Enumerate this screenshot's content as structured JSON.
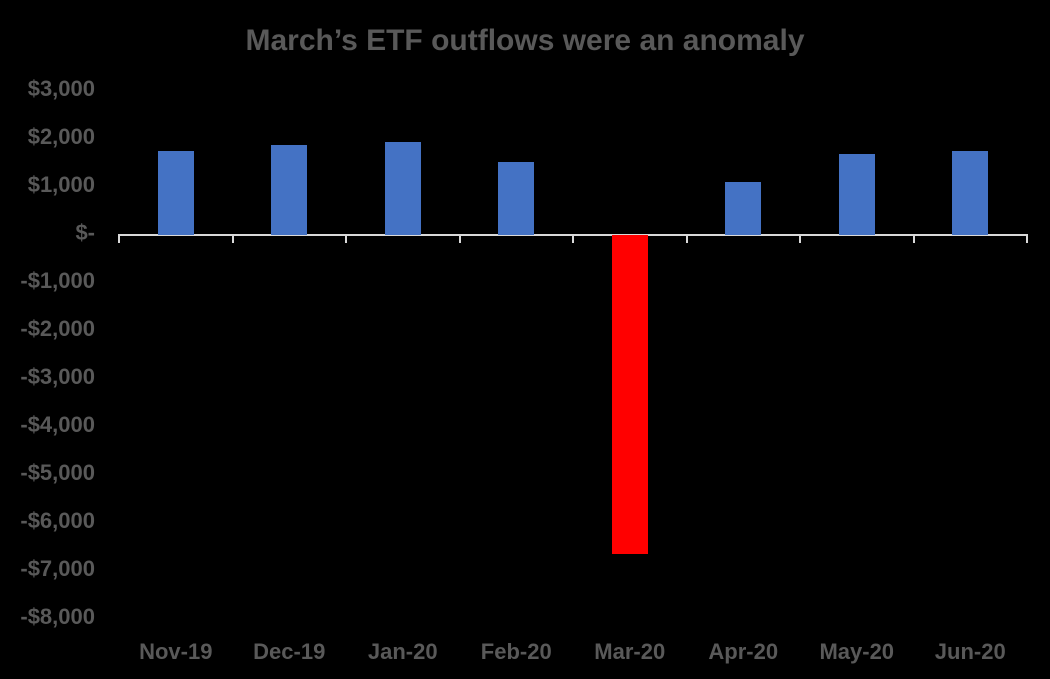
{
  "chart_data": {
    "type": "bar",
    "title": "March’s ETF outflows were an anomaly",
    "categories": [
      "Nov-19",
      "Dec-19",
      "Jan-20",
      "Feb-20",
      "Mar-20",
      "Apr-20",
      "May-20",
      "Jun-20"
    ],
    "values": [
      1750,
      1870,
      1940,
      1530,
      -6650,
      1110,
      1680,
      1740
    ],
    "bar_colors": [
      "#4472C4",
      "#4472C4",
      "#4472C4",
      "#4472C4",
      "#FF0000",
      "#4472C4",
      "#4472C4",
      "#4472C4"
    ],
    "highlighted_category": "Mar-20",
    "xlabel": "",
    "ylabel": "",
    "ylim": [
      -8000,
      3000
    ],
    "ytick_values": [
      3000,
      2000,
      1000,
      0,
      -1000,
      -2000,
      -3000,
      -4000,
      -5000,
      -6000,
      -7000,
      -8000
    ],
    "ytick_labels": [
      "$3,000",
      "$2,000",
      "$1,000",
      "$-",
      "-$1,000",
      "-$2,000",
      "-$3,000",
      "-$4,000",
      "-$5,000",
      "-$6,000",
      "-$7,000",
      "-$8,000"
    ],
    "grid": false,
    "legend": false,
    "colors": {
      "background": "#000000",
      "bar_default": "#4472C4",
      "bar_highlight": "#FF0000",
      "text": "#595959",
      "axis": "#D9D9D9"
    }
  }
}
